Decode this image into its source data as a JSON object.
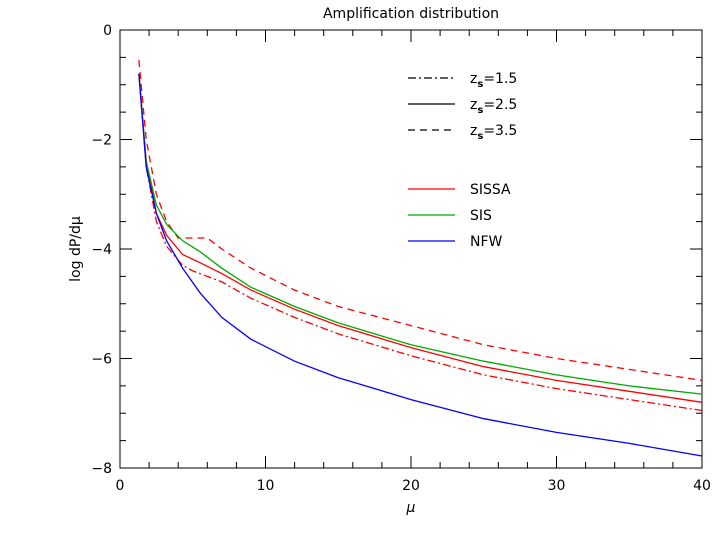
{
  "chart_data": {
    "type": "line",
    "title": "Amplification distribution",
    "xlabel": "μ",
    "ylabel": "log dP/dμ",
    "xlim": [
      0,
      40
    ],
    "ylim": [
      -8,
      0
    ],
    "xticks": [
      "0",
      "10",
      "20",
      "30",
      "40"
    ],
    "yticks": [
      "0",
      "−2",
      "−4",
      "−6",
      "−8"
    ],
    "grid": false,
    "legend_placement": "top-right",
    "legend_style_entries": [
      {
        "dash": "dash-dot",
        "color": "#000000",
        "label_base": "z",
        "label_sub": "s",
        "label_rest": "=1.5"
      },
      {
        "dash": "solid",
        "color": "#000000",
        "label_base": "z",
        "label_sub": "s",
        "label_rest": "=2.5"
      },
      {
        "dash": "dashed",
        "color": "#000000",
        "label_base": "z",
        "label_sub": "s",
        "label_rest": "=3.5"
      }
    ],
    "legend_model_entries": [
      {
        "label": "SISSA",
        "color": "#ff0000"
      },
      {
        "label": "SIS",
        "color": "#00aa00"
      },
      {
        "label": "NFW",
        "color": "#0000ff"
      }
    ],
    "series": [
      {
        "model": "SISSA",
        "zs": "2.5",
        "color": "#ff0000",
        "dash": "solid",
        "x": [
          1.3,
          1.8,
          2.5,
          3.2,
          4.3,
          5.5,
          7,
          9,
          12,
          15,
          20,
          25,
          30,
          35,
          40
        ],
        "y": [
          -0.8,
          -2.4,
          -3.35,
          -3.75,
          -4.1,
          -4.25,
          -4.45,
          -4.75,
          -5.1,
          -5.4,
          -5.8,
          -6.15,
          -6.4,
          -6.6,
          -6.8
        ]
      },
      {
        "model": "SISSA",
        "zs": "3.5",
        "color": "#ff0000",
        "dash": "dashed",
        "x": [
          1.3,
          1.8,
          2.5,
          3.2,
          4,
          5,
          6,
          7,
          9,
          12,
          15,
          20,
          25,
          30,
          35,
          40
        ],
        "y": [
          -0.55,
          -2.0,
          -3.0,
          -3.5,
          -3.8,
          -3.8,
          -3.8,
          -4.0,
          -4.35,
          -4.75,
          -5.05,
          -5.4,
          -5.75,
          -6.0,
          -6.2,
          -6.4
        ]
      },
      {
        "model": "SISSA",
        "zs": "1.5",
        "color": "#ff0000",
        "dash": "dash-dot",
        "x": [
          1.3,
          1.8,
          2.5,
          3.2,
          4.3,
          5,
          6,
          7,
          9,
          12,
          15,
          20,
          25,
          30,
          35,
          40
        ],
        "y": [
          -0.8,
          -2.5,
          -3.5,
          -3.95,
          -4.3,
          -4.4,
          -4.5,
          -4.6,
          -4.9,
          -5.25,
          -5.55,
          -5.95,
          -6.3,
          -6.55,
          -6.75,
          -6.95
        ]
      },
      {
        "model": "SIS",
        "zs": "2.5",
        "color": "#00aa00",
        "dash": "solid",
        "x": [
          1.3,
          1.8,
          2.5,
          3.2,
          4.3,
          5.5,
          7,
          9,
          12,
          15,
          20,
          25,
          30,
          35,
          40
        ],
        "y": [
          -0.8,
          -2.4,
          -3.2,
          -3.55,
          -3.85,
          -4.05,
          -4.35,
          -4.7,
          -5.05,
          -5.35,
          -5.75,
          -6.05,
          -6.3,
          -6.5,
          -6.65
        ]
      },
      {
        "model": "NFW",
        "zs": "2.5",
        "color": "#0000ff",
        "dash": "solid",
        "x": [
          1.3,
          1.8,
          2.5,
          3.2,
          4.3,
          5.5,
          7,
          9,
          12,
          15,
          20,
          25,
          30,
          35,
          40
        ],
        "y": [
          -0.8,
          -2.5,
          -3.35,
          -3.85,
          -4.35,
          -4.8,
          -5.25,
          -5.65,
          -6.05,
          -6.35,
          -6.75,
          -7.1,
          -7.35,
          -7.55,
          -7.78
        ]
      }
    ]
  }
}
